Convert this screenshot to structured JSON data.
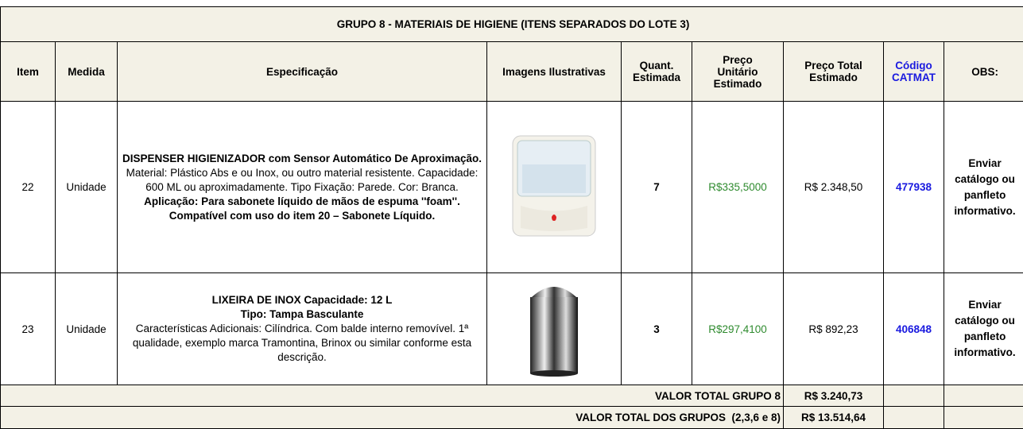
{
  "header": {
    "title": "GRUPO 8 - MATERIAIS DE HIGIENE (ITENS SEPARADOS DO LOTE 3)"
  },
  "table": {
    "columns": [
      "Item",
      "Medida",
      "Especificação",
      "Imagens Ilustrativas",
      "Quant. Estimada",
      "Preço Unitário Estimado",
      "Preço Total Estimado",
      "Código CATMAT",
      "OBS:"
    ],
    "rows": [
      {
        "item": "22",
        "medida": "Unidade",
        "spec": {
          "heading": [
            "DISPENSER HIGIENIZADOR com Sensor Automático De Aproximação."
          ],
          "body": "Material: Plástico Abs e ou Inox, ou outro material resistente. Capacidade: 600 ML ou aproximadamente. Tipo Fixação: Parede. Cor: Branca.",
          "note": "Aplicação: Para sabonete líquido de mãos de espuma ''foam''. Compatível com uso do item 20 – Sabonete Líquido."
        },
        "quantidade": "7",
        "preco_unitario": "R$335,5000",
        "preco_total": "R$ 2.348,50",
        "catmat": "477938",
        "obs": "Enviar catálogo ou panfleto informativo."
      },
      {
        "item": "23",
        "medida": "Unidade",
        "spec": {
          "heading": [
            "LIXEIRA DE INOX Capacidade: 12 L",
            "Tipo: Tampa Basculante"
          ],
          "body": "Características Adicionais: Cilíndrica. Com balde interno removível. 1ª qualidade, exemplo marca Tramontina, Brinox ou similar conforme esta descrição."
        },
        "quantidade": "3",
        "preco_unitario": "R$297,4100",
        "preco_total": "R$ 892,23",
        "catmat": "406848",
        "obs": "Enviar catálogo ou panfleto informativo."
      }
    ],
    "totals": [
      {
        "label": "VALOR TOTAL GRUPO 8",
        "value": "R$ 3.240,73"
      },
      {
        "label": "VALOR TOTAL DOS GRUPOS  (2,3,6 e 8)",
        "value": "R$ 13.514,64"
      }
    ]
  }
}
